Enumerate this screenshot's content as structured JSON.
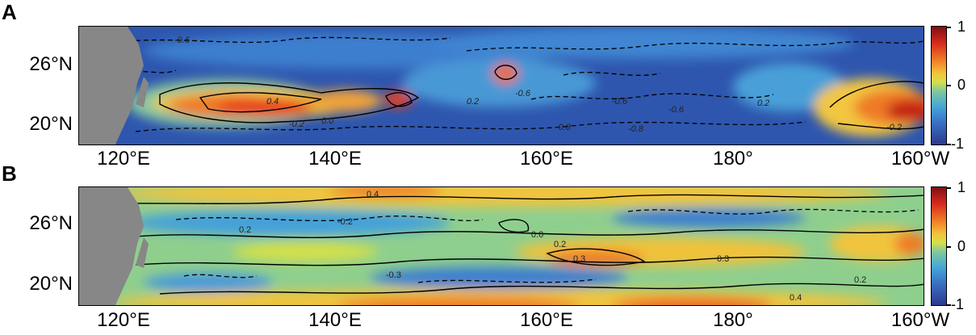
{
  "chart_data": [
    {
      "panel": "A",
      "type": "heatmap",
      "title": "",
      "xlabel": "",
      "ylabel": "",
      "x_tick_labels": [
        "120°E",
        "140°E",
        "160°E",
        "180°",
        "160°W"
      ],
      "y_tick_labels": [
        "20°N",
        "26°N"
      ],
      "colorbar_tick_labels": [
        "1",
        "0",
        "-1"
      ],
      "colorbar_range": [
        -1,
        1
      ],
      "contour_labels": [
        "-0.6",
        "-0.6",
        "-0.6",
        "-0.6",
        "0.4",
        "0.2",
        "-0.2",
        "0.0",
        "-0.8",
        "-0.8",
        "0.2",
        "-0.2"
      ],
      "colors": {
        "land": "#878787",
        "ocean_neg": "#2f58b0",
        "ocean_pos": "#e8401e"
      }
    },
    {
      "panel": "B",
      "type": "heatmap",
      "title": "",
      "xlabel": "",
      "ylabel": "",
      "x_tick_labels": [
        "120°E",
        "140°E",
        "160°E",
        "180°",
        "160°W"
      ],
      "y_tick_labels": [
        "20°N",
        "26°N"
      ],
      "colorbar_tick_labels": [
        "1",
        "0",
        "-1"
      ],
      "colorbar_range": [
        -1,
        1
      ],
      "contour_labels": [
        "0.4",
        "0.2",
        "-0.2",
        "0.3",
        "0.3",
        "0.2",
        "0.4",
        "-0.3",
        "0.2",
        "0.0"
      ],
      "colors": {
        "land": "#878787",
        "ocean_neg": "#3f8fd0",
        "ocean_pos": "#f2c33a"
      }
    }
  ]
}
